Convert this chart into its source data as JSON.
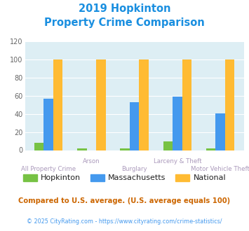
{
  "title_line1": "2019 Hopkinton",
  "title_line2": "Property Crime Comparison",
  "categories": [
    "All Property Crime",
    "Arson",
    "Burglary",
    "Larceny & Theft",
    "Motor Vehicle Theft"
  ],
  "xtick_top": [
    "",
    "Arson",
    "",
    "Larceny & Theft",
    ""
  ],
  "xtick_bot": [
    "All Property Crime",
    "",
    "Burglary",
    "",
    "Motor Vehicle Theft"
  ],
  "hopkinton": [
    8,
    2,
    2,
    10,
    2
  ],
  "massachusetts": [
    57,
    null,
    53,
    59,
    41
  ],
  "national": [
    100,
    100,
    100,
    100,
    100
  ],
  "hopkinton_color": "#77c244",
  "massachusetts_color": "#4499ee",
  "national_color": "#ffbb33",
  "bg_color": "#ddeef4",
  "title_color": "#1a8fe0",
  "tick_color": "#aa99bb",
  "ylabel_color": "#666666",
  "ylim": [
    0,
    120
  ],
  "yticks": [
    0,
    20,
    40,
    60,
    80,
    100,
    120
  ],
  "footnote1": "Compared to U.S. average. (U.S. average equals 100)",
  "footnote2": "© 2025 CityRating.com - https://www.cityrating.com/crime-statistics/",
  "footnote1_color": "#cc6600",
  "footnote2_color": "#4499ee",
  "bar_width": 0.22,
  "legend_labels": [
    "Hopkinton",
    "Massachusetts",
    "National"
  ]
}
